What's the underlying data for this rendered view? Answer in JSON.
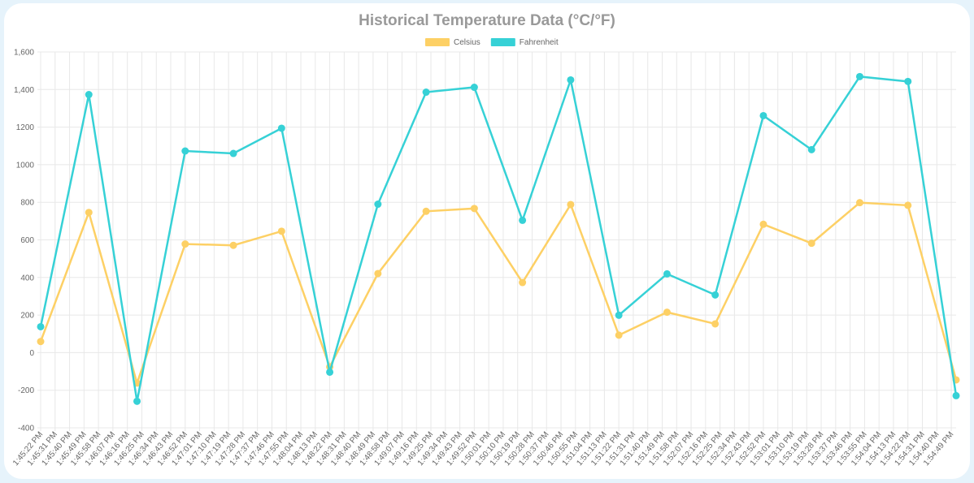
{
  "chart_data": {
    "type": "line",
    "title": "Historical Temperature Data (°C/°F)",
    "x": [
      "1:45:22 PM",
      "1:45:52 PM",
      "1:46:22 PM",
      "1:46:52 PM",
      "1:47:22 PM",
      "1:47:52 PM",
      "1:48:22 PM",
      "1:48:52 PM",
      "1:49:22 PM",
      "1:49:52 PM",
      "1:50:22 PM",
      "1:50:52 PM",
      "1:51:22 PM",
      "1:51:52 PM",
      "1:52:22 PM",
      "1:52:52 PM",
      "1:53:22 PM",
      "1:53:52 PM",
      "1:54:22 PM",
      "1:54:52 PM"
    ],
    "series": [
      {
        "name": "Celsius",
        "color": "#fdd065",
        "values": [
          59,
          746,
          -162,
          578,
          571,
          646,
          -76,
          421,
          752,
          767,
          373,
          788,
          93,
          215,
          153,
          683,
          582,
          798,
          784,
          -145
        ]
      },
      {
        "name": "Fahrenheit",
        "color": "#36d1d6",
        "values": [
          138,
          1373,
          -259,
          1073,
          1060,
          1194,
          -104,
          790,
          1386,
          1412,
          704,
          1451,
          199,
          419,
          307,
          1261,
          1080,
          1469,
          1443,
          -229
        ]
      }
    ],
    "xlim": [
      "1:45:22 PM",
      "1:54:52 PM"
    ],
    "xticks": [
      "1:45:22 PM",
      "1:45:31 PM",
      "1:45:40 PM",
      "1:45:49 PM",
      "1:45:58 PM",
      "1:46:07 PM",
      "1:46:16 PM",
      "1:46:25 PM",
      "1:46:34 PM",
      "1:46:43 PM",
      "1:46:52 PM",
      "1:47:01 PM",
      "1:47:10 PM",
      "1:47:19 PM",
      "1:47:28 PM",
      "1:47:37 PM",
      "1:47:46 PM",
      "1:47:55 PM",
      "1:48:04 PM",
      "1:48:13 PM",
      "1:48:22 PM",
      "1:48:31 PM",
      "1:48:40 PM",
      "1:48:49 PM",
      "1:48:58 PM",
      "1:49:07 PM",
      "1:49:16 PM",
      "1:49:25 PM",
      "1:49:34 PM",
      "1:49:43 PM",
      "1:49:52 PM",
      "1:50:01 PM",
      "1:50:10 PM",
      "1:50:19 PM",
      "1:50:28 PM",
      "1:50:37 PM",
      "1:50:46 PM",
      "1:50:55 PM",
      "1:51:04 PM",
      "1:51:13 PM",
      "1:51:22 PM",
      "1:51:31 PM",
      "1:51:40 PM",
      "1:51:49 PM",
      "1:51:58 PM",
      "1:52:07 PM",
      "1:52:16 PM",
      "1:52:25 PM",
      "1:52:34 PM",
      "1:52:43 PM",
      "1:52:52 PM",
      "1:53:01 PM",
      "1:53:10 PM",
      "1:53:19 PM",
      "1:53:28 PM",
      "1:53:37 PM",
      "1:53:46 PM",
      "1:53:55 PM",
      "1:54:04 PM",
      "1:54:13 PM",
      "1:54:22 PM",
      "1:54:31 PM",
      "1:54:40 PM",
      "1:54:49 PM"
    ],
    "ylim": [
      -400,
      1600
    ],
    "yticks": [
      -400,
      -200,
      0,
      200,
      400,
      600,
      800,
      1000,
      1200,
      {
        "value": 1400,
        "label": "1,400"
      },
      {
        "value": 1600,
        "label": "1,600"
      }
    ],
    "grid": true
  }
}
